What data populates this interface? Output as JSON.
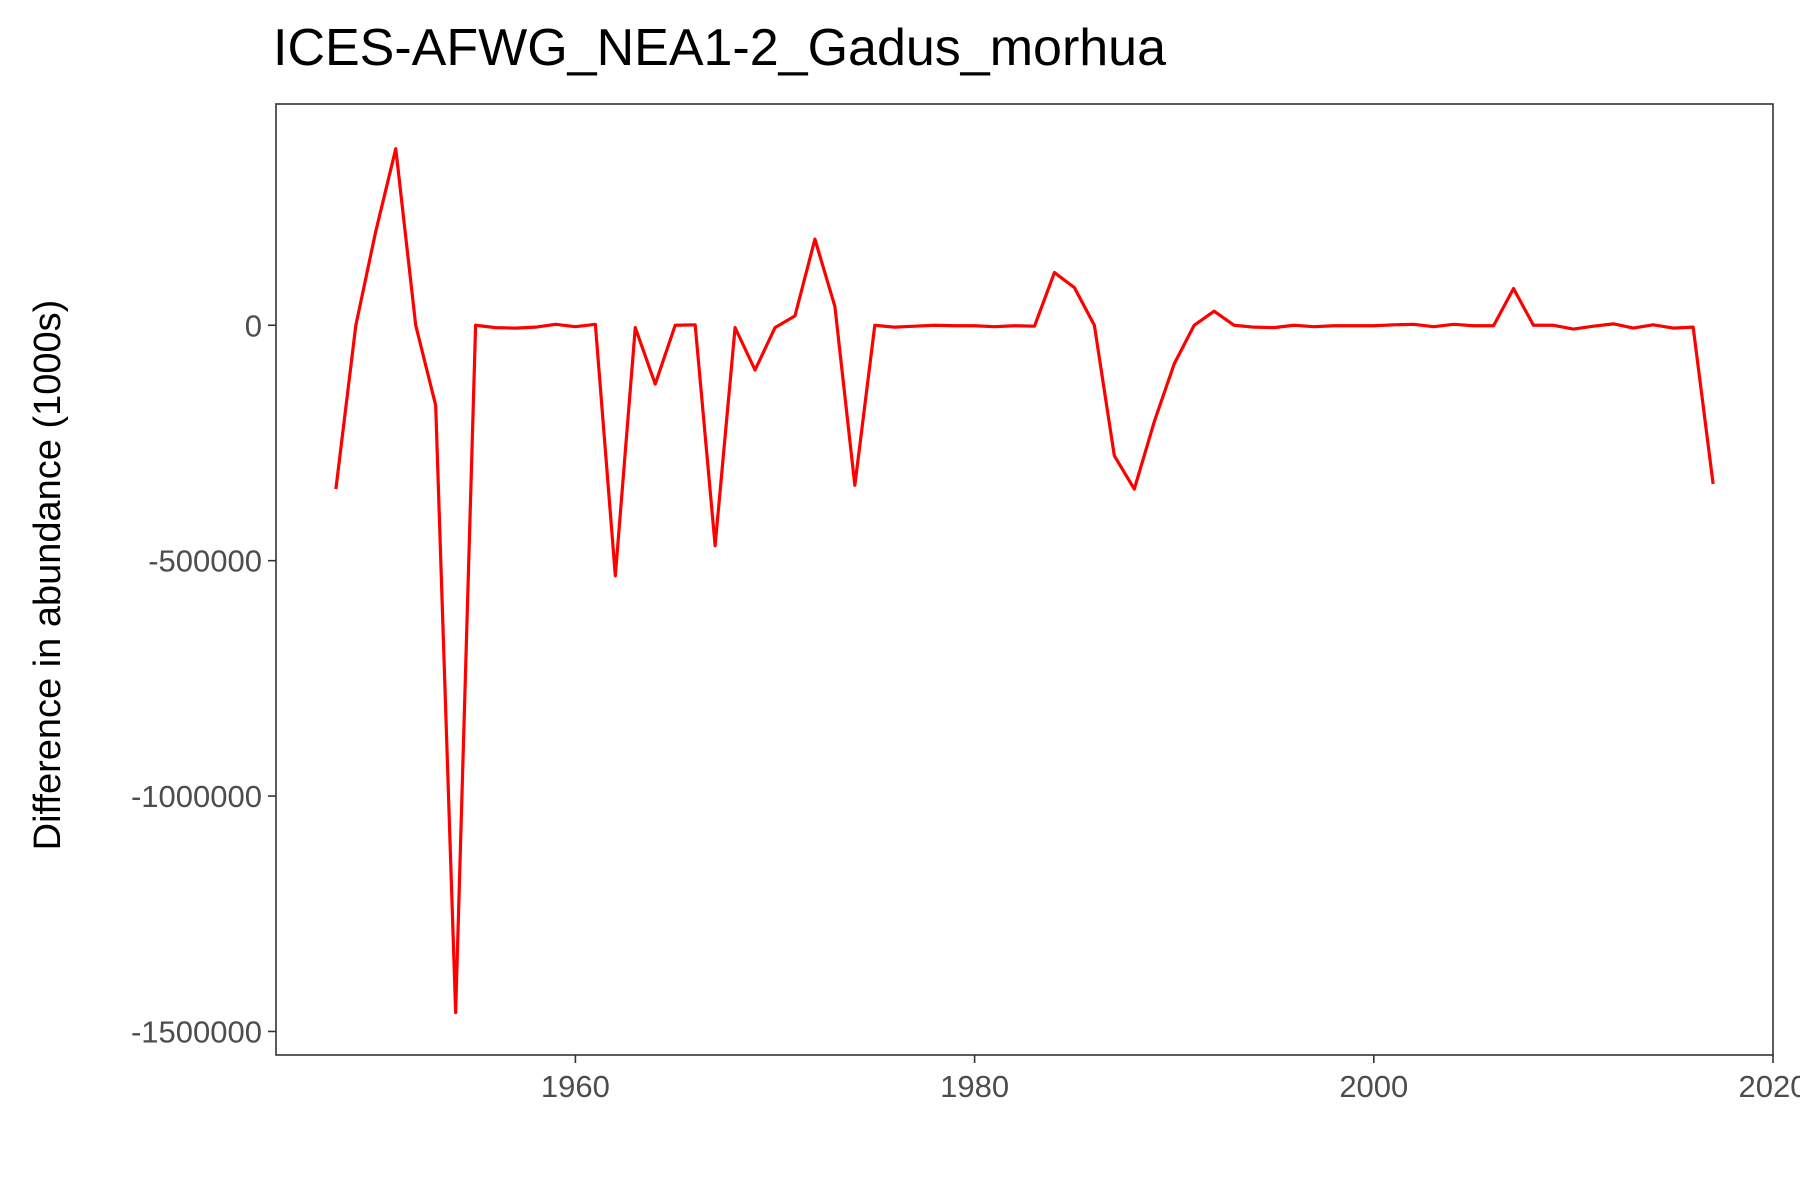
{
  "chart_data": {
    "type": "line",
    "title": "ICES-AFWG_NEA1-2_Gadus_morhua",
    "xlabel": "",
    "ylabel": "Difference in abundance (1000s)",
    "xlim": [
      1945,
      2020
    ],
    "ylim": [
      -1550000,
      470000
    ],
    "x_ticks": [
      1960,
      1980,
      2000,
      2020
    ],
    "x_tick_labels": [
      "1960",
      "1980",
      "2000",
      "2020"
    ],
    "y_ticks": [
      0,
      -500000,
      -1000000,
      -1500000
    ],
    "y_tick_labels": [
      "0",
      "-500000",
      "-1000000",
      "-1500000"
    ],
    "grid": false,
    "legend": "none",
    "line_color": "#ff0000",
    "series": [
      {
        "x": [
          1948,
          1949,
          1950,
          1951,
          1952,
          1953,
          1954,
          1955,
          1956,
          1957,
          1958,
          1959,
          1960,
          1961,
          1962,
          1963,
          1964,
          1965,
          1966,
          1967,
          1968,
          1969,
          1970,
          1971,
          1972,
          1973,
          1974,
          1975,
          1976,
          1977,
          1978,
          1979,
          1980,
          1981,
          1982,
          1983,
          1984,
          1985,
          1986,
          1987,
          1988,
          1989,
          1990,
          1991,
          1992,
          1993,
          1994,
          1995,
          1996,
          1997,
          1998,
          1999,
          2000,
          2001,
          2002,
          2003,
          2004,
          2005,
          2006,
          2007,
          2008,
          2009,
          2010,
          2011,
          2012,
          2013,
          2014,
          2015,
          2016,
          2017
        ],
        "values": [
          -348000,
          0,
          200000,
          375000,
          0,
          -170000,
          -1460000,
          0,
          -5000,
          -6000,
          -4000,
          2000,
          -3000,
          2000,
          -532000,
          -5000,
          -125000,
          0,
          1000,
          -468000,
          -5000,
          -95000,
          -5000,
          20000,
          183000,
          40000,
          -340000,
          0,
          -4000,
          -2000,
          0,
          -1000,
          -1000,
          -3000,
          -1000,
          -2000,
          112000,
          80000,
          0,
          -277000,
          -348000,
          -205000,
          -82000,
          0,
          30000,
          0,
          -4000,
          -5000,
          0,
          -3000,
          -1000,
          -1000,
          -1000,
          1000,
          2000,
          -3000,
          2000,
          -1000,
          -1000,
          78000,
          0,
          0,
          -8000,
          -2000,
          3000,
          -6000,
          1000,
          -6000,
          -4000,
          -337000
        ]
      }
    ]
  }
}
